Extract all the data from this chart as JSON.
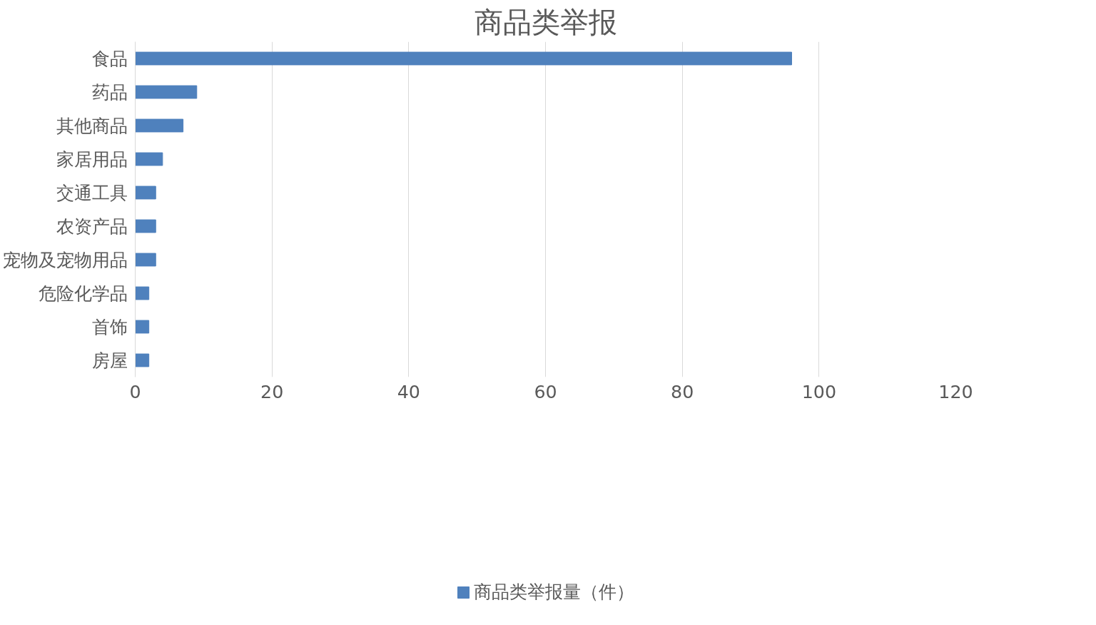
{
  "chart_data": {
    "type": "bar",
    "orientation": "horizontal",
    "title": "商品类举报",
    "categories": [
      "食品",
      "药品",
      "其他商品",
      "家居用品",
      "交通工具",
      "农资产品",
      "宠物及宠物用品",
      "危险化学品",
      "首饰",
      "房屋"
    ],
    "series": [
      {
        "name": "商品类举报量（件）",
        "color": "#4f81bd",
        "values": [
          96,
          9,
          7,
          4,
          3,
          3,
          3,
          2,
          2,
          2
        ]
      }
    ],
    "xlim": [
      0,
      120
    ],
    "xticks": [
      0,
      20,
      40,
      60,
      80,
      100,
      120
    ],
    "grid": "x",
    "legend": "bottom"
  }
}
